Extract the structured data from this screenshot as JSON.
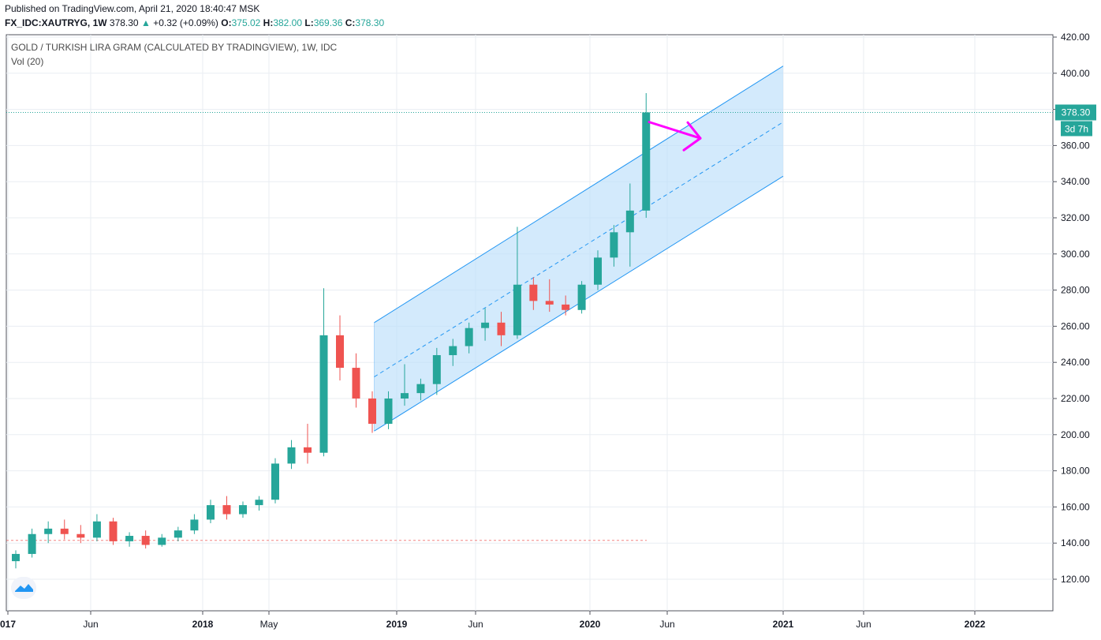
{
  "header": {
    "published": "Published on TradingView.com, April 21, 2020 18:40:47 MSK",
    "symbol_label": "FX_IDC:XAUTRYG, 1W",
    "last": "378.30",
    "change_arrow": "▲",
    "change": "+0.32 (+0.09%)",
    "open_label": "O:",
    "open": "375.02",
    "high_label": "H:",
    "high": "382.00",
    "low_label": "L:",
    "low": "369.36",
    "close_label": "C:",
    "close": "378.30"
  },
  "legend": {
    "title": "GOLD / TURKISH LIRA GRAM (CALCULATED BY TRADINGVIEW), 1W, IDC",
    "volume": "Vol (20)"
  },
  "price_tag": {
    "value": "378.30",
    "countdown": "3d 7h"
  },
  "colors": {
    "up": "#26a69a",
    "down": "#ef5350",
    "channel_line": "#2196f3",
    "channel_fill": "#bbdefb",
    "arrow": "#ff00ff",
    "grid": "#e9edf2"
  },
  "logo": "tradingview-logo-icon",
  "chart_data": {
    "type": "candlestick",
    "ylim": [
      110,
      420
    ],
    "y_ticks": [
      "420.00",
      "400.00",
      "380.00",
      "360.00",
      "340.00",
      "320.00",
      "300.00",
      "280.00",
      "260.00",
      "240.00",
      "220.00",
      "200.00",
      "180.00",
      "160.00",
      "140.00",
      "120.00"
    ],
    "x_ticks": [
      "017",
      "Jun",
      "2018",
      "May",
      "2019",
      "Jun",
      "2020",
      "Jun",
      "2021",
      "Jun",
      "2022"
    ],
    "last_price": 378.3,
    "horizontal_line": 141.5,
    "series": [
      {
        "date": "2017-01",
        "open": 130,
        "high": 136,
        "low": 126,
        "close": 134
      },
      {
        "date": "2017-02",
        "open": 134,
        "high": 148,
        "low": 132,
        "close": 145
      },
      {
        "date": "2017-03",
        "open": 145,
        "high": 152,
        "low": 140,
        "close": 148
      },
      {
        "date": "2017-04",
        "open": 148,
        "high": 153,
        "low": 142,
        "close": 145
      },
      {
        "date": "2017-05",
        "open": 145,
        "high": 150,
        "low": 140,
        "close": 143
      },
      {
        "date": "2017-06",
        "open": 143,
        "high": 156,
        "low": 141,
        "close": 152
      },
      {
        "date": "2017-07",
        "open": 152,
        "high": 154,
        "low": 139,
        "close": 141
      },
      {
        "date": "2017-08",
        "open": 141,
        "high": 146,
        "low": 138,
        "close": 144
      },
      {
        "date": "2017-09",
        "open": 144,
        "high": 147,
        "low": 137,
        "close": 139
      },
      {
        "date": "2017-10",
        "open": 139,
        "high": 145,
        "low": 138,
        "close": 143
      },
      {
        "date": "2017-11",
        "open": 143,
        "high": 149,
        "low": 141,
        "close": 147
      },
      {
        "date": "2017-12",
        "open": 147,
        "high": 156,
        "low": 145,
        "close": 153
      },
      {
        "date": "2018-01",
        "open": 153,
        "high": 164,
        "low": 151,
        "close": 161
      },
      {
        "date": "2018-02",
        "open": 161,
        "high": 166,
        "low": 153,
        "close": 156
      },
      {
        "date": "2018-03",
        "open": 156,
        "high": 163,
        "low": 154,
        "close": 161
      },
      {
        "date": "2018-04",
        "open": 161,
        "high": 166,
        "low": 158,
        "close": 164
      },
      {
        "date": "2018-05",
        "open": 164,
        "high": 187,
        "low": 162,
        "close": 184
      },
      {
        "date": "2018-06",
        "open": 184,
        "high": 197,
        "low": 181,
        "close": 193
      },
      {
        "date": "2018-07",
        "open": 193,
        "high": 206,
        "low": 184,
        "close": 190
      },
      {
        "date": "2018-08",
        "open": 190,
        "high": 281,
        "low": 188,
        "close": 255
      },
      {
        "date": "2018-09",
        "open": 255,
        "high": 266,
        "low": 230,
        "close": 237
      },
      {
        "date": "2018-10",
        "open": 237,
        "high": 245,
        "low": 215,
        "close": 220
      },
      {
        "date": "2018-11",
        "open": 220,
        "high": 224,
        "low": 201,
        "close": 206
      },
      {
        "date": "2018-12",
        "open": 206,
        "high": 224,
        "low": 203,
        "close": 220
      },
      {
        "date": "2019-01",
        "open": 220,
        "high": 239,
        "low": 216,
        "close": 223
      },
      {
        "date": "2019-02",
        "open": 223,
        "high": 231,
        "low": 219,
        "close": 228
      },
      {
        "date": "2019-03",
        "open": 228,
        "high": 248,
        "low": 222,
        "close": 244
      },
      {
        "date": "2019-04",
        "open": 244,
        "high": 253,
        "low": 238,
        "close": 249
      },
      {
        "date": "2019-05",
        "open": 249,
        "high": 262,
        "low": 245,
        "close": 259
      },
      {
        "date": "2019-06",
        "open": 259,
        "high": 270,
        "low": 252,
        "close": 262
      },
      {
        "date": "2019-07",
        "open": 262,
        "high": 268,
        "low": 249,
        "close": 255
      },
      {
        "date": "2019-08",
        "open": 255,
        "high": 315,
        "low": 253,
        "close": 283
      },
      {
        "date": "2019-09",
        "open": 283,
        "high": 287,
        "low": 269,
        "close": 274
      },
      {
        "date": "2019-10",
        "open": 274,
        "high": 286,
        "low": 268,
        "close": 272
      },
      {
        "date": "2019-11",
        "open": 272,
        "high": 277,
        "low": 266,
        "close": 269
      },
      {
        "date": "2019-12",
        "open": 269,
        "high": 285,
        "low": 267,
        "close": 283
      },
      {
        "date": "2020-01",
        "open": 283,
        "high": 302,
        "low": 280,
        "close": 298
      },
      {
        "date": "2020-02",
        "open": 298,
        "high": 316,
        "low": 293,
        "close": 312
      },
      {
        "date": "2020-03",
        "open": 312,
        "high": 339,
        "low": 293,
        "close": 324
      },
      {
        "date": "2020-04",
        "open": 324,
        "high": 389,
        "low": 320,
        "close": 378.3
      }
    ],
    "channel": {
      "start_date": "2018-12",
      "end_date": "2021-01",
      "lower_start": 202,
      "lower_end": 343,
      "upper_start": 262,
      "upper_end": 404,
      "median_start": 232,
      "median_end": 373
    },
    "arrow_annotation": {
      "from_price": 373,
      "to_price": 364
    }
  }
}
